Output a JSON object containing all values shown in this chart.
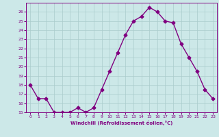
{
  "x": [
    0,
    1,
    2,
    3,
    4,
    5,
    6,
    7,
    8,
    9,
    10,
    11,
    12,
    13,
    14,
    15,
    16,
    17,
    18,
    19,
    20,
    21,
    22,
    23
  ],
  "y": [
    18,
    16.5,
    16.5,
    15,
    15,
    15,
    15.5,
    15,
    15.5,
    17.5,
    19.5,
    21.5,
    23.5,
    25,
    25.5,
    26.5,
    26,
    25,
    24.8,
    22.5,
    21,
    19.5,
    17.5,
    16.5
  ],
  "line_color": "#800080",
  "marker": "D",
  "markersize": 2.5,
  "linewidth": 1.0,
  "xlim": [
    -0.5,
    23.5
  ],
  "ylim": [
    15,
    27
  ],
  "yticks": [
    15,
    16,
    17,
    18,
    19,
    20,
    21,
    22,
    23,
    24,
    25,
    26
  ],
  "xticks": [
    0,
    1,
    2,
    3,
    4,
    5,
    6,
    7,
    8,
    9,
    10,
    11,
    12,
    13,
    14,
    15,
    16,
    17,
    18,
    19,
    20,
    21,
    22,
    23
  ],
  "xlabel": "Windchill (Refroidissement éolien,°C)",
  "background_color": "#cce8e8",
  "grid_color": "#aacccc",
  "tick_color": "#800080",
  "label_color": "#800080"
}
